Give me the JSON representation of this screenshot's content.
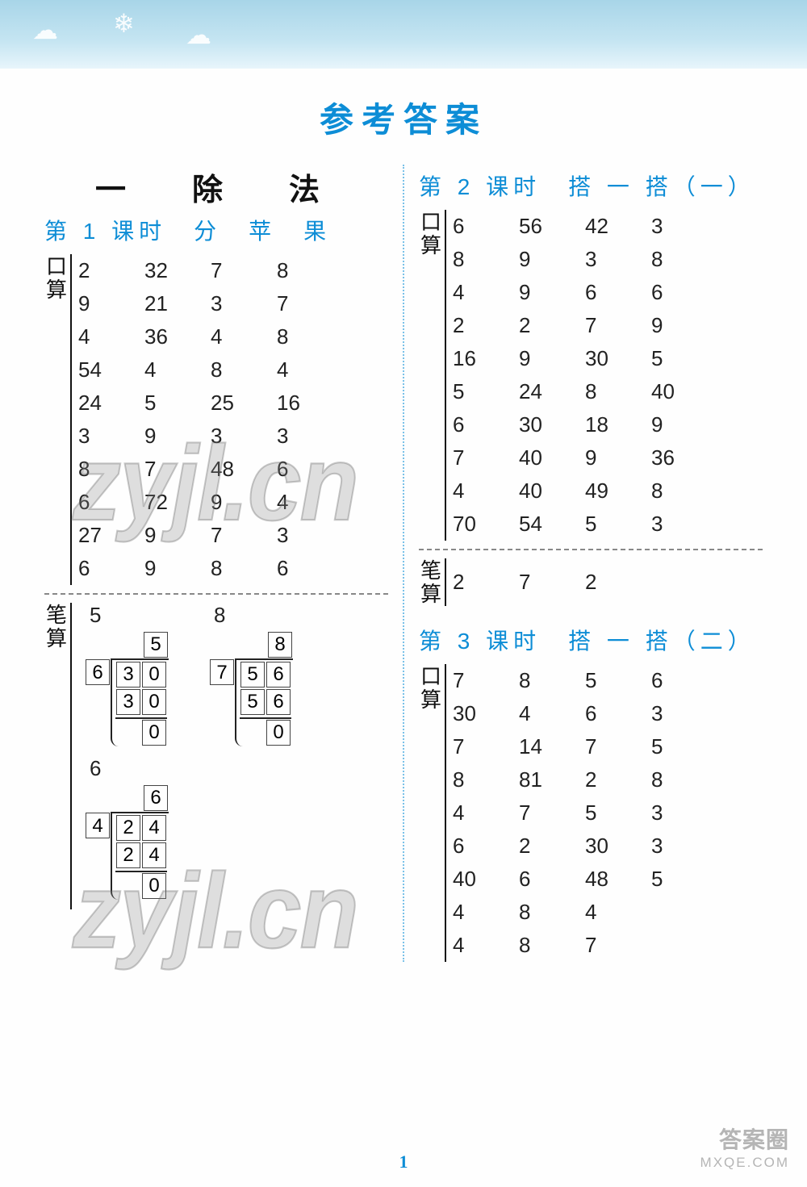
{
  "main_title": "参考答案",
  "page_number": "1",
  "corner": {
    "line1": "答案圈",
    "line2": "MXQE.COM"
  },
  "left": {
    "section_title": "一　除　法",
    "lesson1": {
      "heading": "第 1 课时　分　苹　果",
      "kousuan_label": "口算",
      "bisuan_label": "笔算",
      "table": [
        [
          "2",
          "32",
          "7",
          "8"
        ],
        [
          "9",
          "21",
          "3",
          "7"
        ],
        [
          "4",
          "36",
          "4",
          "8"
        ],
        [
          "54",
          "4",
          "8",
          "4"
        ],
        [
          "24",
          "5",
          "25",
          "16"
        ],
        [
          "3",
          "9",
          "3",
          "3"
        ],
        [
          "8",
          "7",
          "48",
          "6"
        ],
        [
          "6",
          "72",
          "9",
          "4"
        ],
        [
          "27",
          "9",
          "7",
          "3"
        ],
        [
          "6",
          "9",
          "8",
          "6"
        ]
      ],
      "bisuan_simple": [
        "5",
        "8",
        "6"
      ],
      "div1": {
        "quot": "5",
        "divisor": "6",
        "dividend": [
          "3",
          "0"
        ],
        "sub": [
          "3",
          "0"
        ],
        "rem": [
          "0"
        ]
      },
      "div2": {
        "quot": "8",
        "divisor": "7",
        "dividend": [
          "5",
          "6"
        ],
        "sub": [
          "5",
          "6"
        ],
        "rem": [
          "0"
        ]
      },
      "div3": {
        "quot": "6",
        "divisor": "4",
        "dividend": [
          "2",
          "4"
        ],
        "sub": [
          "2",
          "4"
        ],
        "rem": [
          "0"
        ]
      }
    }
  },
  "right": {
    "lesson2": {
      "heading": "第 2 课时　搭 一 搭（一）",
      "kousuan_label": "口算",
      "bisuan_label": "笔算",
      "table": [
        [
          "6",
          "56",
          "42",
          "3"
        ],
        [
          "8",
          "9",
          "3",
          "8"
        ],
        [
          "4",
          "9",
          "6",
          "6"
        ],
        [
          "2",
          "2",
          "7",
          "9"
        ],
        [
          "16",
          "9",
          "30",
          "5"
        ],
        [
          "5",
          "24",
          "8",
          "40"
        ],
        [
          "6",
          "30",
          "18",
          "9"
        ],
        [
          "7",
          "40",
          "9",
          "36"
        ],
        [
          "4",
          "40",
          "49",
          "8"
        ],
        [
          "70",
          "54",
          "5",
          "3"
        ]
      ],
      "bisuan_row": [
        "2",
        "7",
        "2"
      ]
    },
    "lesson3": {
      "heading": "第 3 课时　搭 一 搭（二）",
      "kousuan_label": "口算",
      "table": [
        [
          "7",
          "8",
          "5",
          "6"
        ],
        [
          "30",
          "4",
          "6",
          "3"
        ],
        [
          "7",
          "14",
          "7",
          "5"
        ],
        [
          "8",
          "81",
          "2",
          "8"
        ],
        [
          "4",
          "7",
          "5",
          "3"
        ],
        [
          "6",
          "2",
          "30",
          "3"
        ],
        [
          "40",
          "6",
          "48",
          "5"
        ],
        [
          "4",
          "8",
          "4",
          ""
        ],
        [
          "4",
          "8",
          "7",
          ""
        ]
      ]
    }
  }
}
